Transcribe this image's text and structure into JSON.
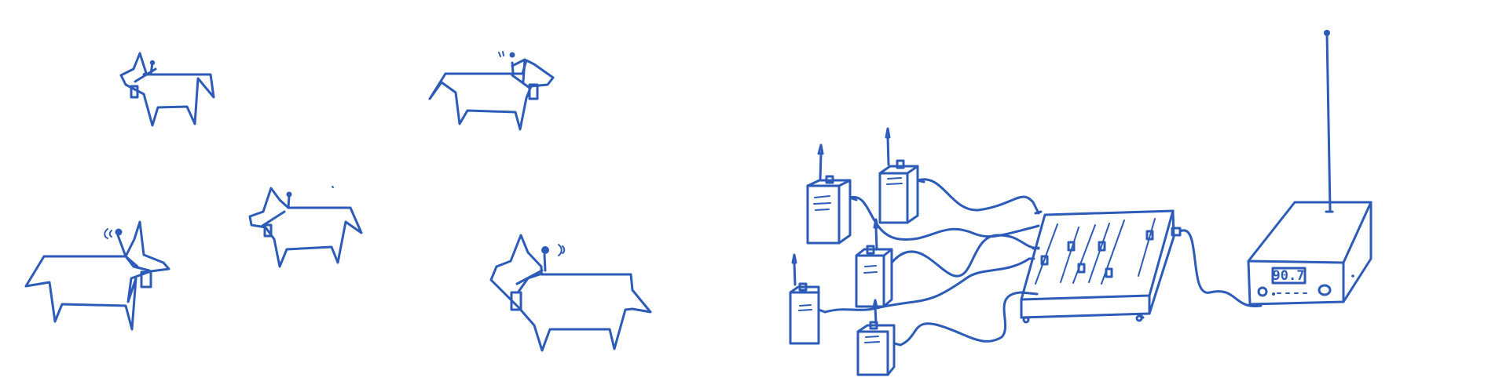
{
  "colors": {
    "ink": "#2c5bb8",
    "background": "#ffffff"
  },
  "receiver": {
    "display": "90.7"
  }
}
